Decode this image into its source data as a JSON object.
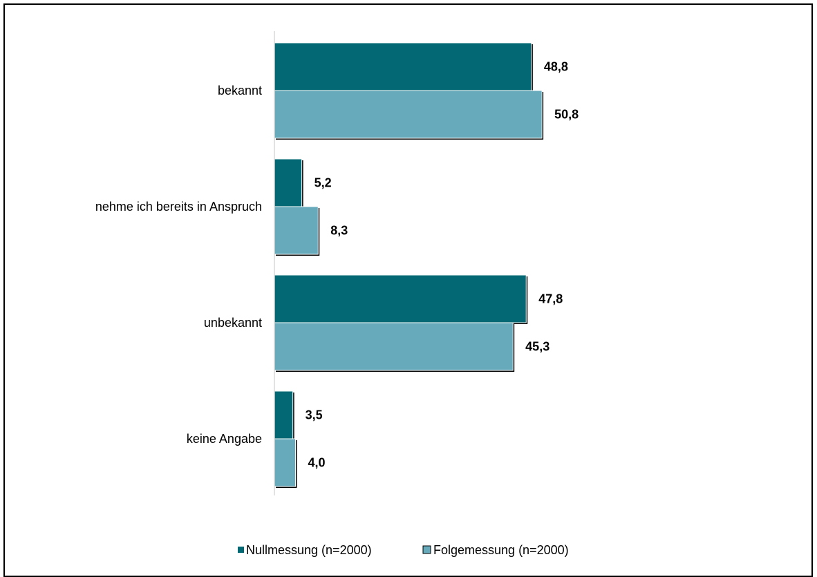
{
  "chart_data": {
    "type": "bar",
    "orientation": "horizontal",
    "categories": [
      "bekannt",
      "nehme ich bereits in Anspruch",
      "unbekannt",
      "keine Angabe"
    ],
    "series": [
      {
        "name": "Nullmessung (n=2000)",
        "values": [
          48.8,
          5.2,
          47.8,
          3.5
        ],
        "labels": [
          "48,8",
          "5,2",
          "47,8",
          "3,5"
        ],
        "color": "#036873"
      },
      {
        "name": "Folgemessung (n=2000)",
        "values": [
          50.8,
          8.3,
          45.3,
          4.0
        ],
        "labels": [
          "50,8",
          "8,3",
          "45,3",
          "4,0"
        ],
        "color": "#66aabb"
      }
    ],
    "xlim": [
      0,
      100
    ],
    "grid": false,
    "legend_position": "bottom"
  }
}
